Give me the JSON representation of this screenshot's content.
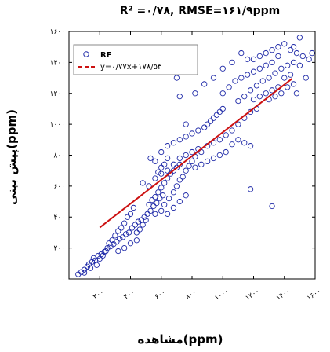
{
  "chart_data": {
    "type": "scatter",
    "title": "R² =۰/۷۸, RMSE=۱۶۱/۹ppm",
    "xlabel": "مشاهده(ppm)",
    "ylabel": "پیش بینی(ppm)",
    "xlim": [
      0,
      1600
    ],
    "ylim": [
      0,
      1600
    ],
    "x_ticks": [
      200,
      400,
      600,
      800,
      1000,
      1200,
      1400,
      1600
    ],
    "x_tick_labels": [
      "۲۰۰",
      "۴۰۰",
      "۶۰۰",
      "۸۰۰",
      "۱۰۰۰",
      "۱۲۰۰",
      "۱۴۰۰",
      "۱۶۰۰"
    ],
    "y_ticks": [
      0,
      200,
      400,
      600,
      800,
      1000,
      1200,
      1400,
      1600
    ],
    "y_tick_labels": [
      "۰",
      "۲۰۰",
      "۴۰۰",
      "۶۰۰",
      "۸۰۰",
      "۱۰۰۰",
      "۱۲۰۰",
      "۱۴۰۰",
      "۱۶۰۰"
    ],
    "legend_placement": "top-left",
    "grid": false,
    "series": [
      {
        "name": "RF",
        "kind": "scatter",
        "color": "#1f2aa8",
        "points": [
          [
            60,
            30
          ],
          [
            80,
            45
          ],
          [
            100,
            60
          ],
          [
            120,
            80
          ],
          [
            130,
            95
          ],
          [
            150,
            110
          ],
          [
            170,
            120
          ],
          [
            160,
            135
          ],
          [
            190,
            150
          ],
          [
            210,
            160
          ],
          [
            230,
            175
          ],
          [
            250,
            200
          ],
          [
            270,
            210
          ],
          [
            290,
            225
          ],
          [
            310,
            240
          ],
          [
            330,
            260
          ],
          [
            350,
            270
          ],
          [
            370,
            290
          ],
          [
            390,
            300
          ],
          [
            410,
            330
          ],
          [
            430,
            350
          ],
          [
            450,
            370
          ],
          [
            470,
            380
          ],
          [
            490,
            400
          ],
          [
            510,
            420
          ],
          [
            530,
            440
          ],
          [
            550,
            470
          ],
          [
            570,
            490
          ],
          [
            590,
            520
          ],
          [
            610,
            540
          ],
          [
            100,
            40
          ],
          [
            140,
            70
          ],
          [
            180,
            90
          ],
          [
            200,
            130
          ],
          [
            220,
            150
          ],
          [
            240,
            180
          ],
          [
            260,
            230
          ],
          [
            280,
            250
          ],
          [
            300,
            280
          ],
          [
            320,
            310
          ],
          [
            340,
            330
          ],
          [
            360,
            360
          ],
          [
            380,
            400
          ],
          [
            400,
            420
          ],
          [
            420,
            460
          ],
          [
            440,
            300
          ],
          [
            460,
            320
          ],
          [
            480,
            350
          ],
          [
            500,
            380
          ],
          [
            520,
            480
          ],
          [
            540,
            510
          ],
          [
            560,
            530
          ],
          [
            580,
            560
          ],
          [
            600,
            590
          ],
          [
            620,
            620
          ],
          [
            640,
            650
          ],
          [
            660,
            680
          ],
          [
            680,
            700
          ],
          [
            700,
            720
          ],
          [
            720,
            740
          ],
          [
            620,
            480
          ],
          [
            650,
            520
          ],
          [
            680,
            560
          ],
          [
            700,
            600
          ],
          [
            720,
            640
          ],
          [
            740,
            660
          ],
          [
            760,
            700
          ],
          [
            780,
            730
          ],
          [
            800,
            760
          ],
          [
            820,
            790
          ],
          [
            580,
            690
          ],
          [
            600,
            720
          ],
          [
            620,
            740
          ],
          [
            640,
            780
          ],
          [
            560,
            760
          ],
          [
            530,
            780
          ],
          [
            600,
            820
          ],
          [
            640,
            860
          ],
          [
            680,
            880
          ],
          [
            720,
            900
          ],
          [
            760,
            920
          ],
          [
            800,
            940
          ],
          [
            840,
            960
          ],
          [
            880,
            980
          ],
          [
            900,
            1000
          ],
          [
            920,
            1020
          ],
          [
            940,
            1040
          ],
          [
            960,
            1060
          ],
          [
            980,
            1080
          ],
          [
            1000,
            1100
          ],
          [
            860,
            820
          ],
          [
            900,
            860
          ],
          [
            940,
            880
          ],
          [
            980,
            900
          ],
          [
            1020,
            930
          ],
          [
            1060,
            960
          ],
          [
            1100,
            1000
          ],
          [
            1140,
            1040
          ],
          [
            1180,
            1080
          ],
          [
            1220,
            1100
          ],
          [
            1000,
            1200
          ],
          [
            1040,
            1240
          ],
          [
            1080,
            1280
          ],
          [
            1120,
            1300
          ],
          [
            1160,
            1320
          ],
          [
            1200,
            1340
          ],
          [
            1240,
            1360
          ],
          [
            1280,
            1380
          ],
          [
            1320,
            1400
          ],
          [
            1360,
            1440
          ],
          [
            1100,
            1150
          ],
          [
            1140,
            1180
          ],
          [
            1180,
            1220
          ],
          [
            1220,
            1250
          ],
          [
            1260,
            1280
          ],
          [
            1300,
            1300
          ],
          [
            1340,
            1330
          ],
          [
            1380,
            1360
          ],
          [
            1420,
            1380
          ],
          [
            1460,
            1400
          ],
          [
            1200,
            1420
          ],
          [
            1240,
            1440
          ],
          [
            1280,
            1460
          ],
          [
            1320,
            1480
          ],
          [
            1360,
            1500
          ],
          [
            1400,
            1520
          ],
          [
            1440,
            1480
          ],
          [
            1480,
            1460
          ],
          [
            1400,
            1300
          ],
          [
            1440,
            1320
          ],
          [
            1300,
            1160
          ],
          [
            1340,
            1180
          ],
          [
            1380,
            1200
          ],
          [
            1420,
            1240
          ],
          [
            1460,
            1260
          ],
          [
            1360,
            1240
          ],
          [
            1320,
            1220
          ],
          [
            1280,
            1200
          ],
          [
            1240,
            1180
          ],
          [
            1200,
            1160
          ],
          [
            1100,
            900
          ],
          [
            1140,
            880
          ],
          [
            1180,
            860
          ],
          [
            1060,
            870
          ],
          [
            1020,
            820
          ],
          [
            980,
            800
          ],
          [
            940,
            780
          ],
          [
            900,
            760
          ],
          [
            860,
            740
          ],
          [
            820,
            720
          ],
          [
            760,
            1000
          ],
          [
            720,
            1180
          ],
          [
            700,
            1300
          ],
          [
            820,
            1200
          ],
          [
            880,
            1260
          ],
          [
            940,
            1300
          ],
          [
            1000,
            1360
          ],
          [
            1060,
            1400
          ],
          [
            1120,
            1460
          ],
          [
            1160,
            1420
          ],
          [
            480,
            620
          ],
          [
            520,
            600
          ],
          [
            560,
            650
          ],
          [
            600,
            680
          ],
          [
            640,
            700
          ],
          [
            680,
            740
          ],
          [
            720,
            780
          ],
          [
            760,
            800
          ],
          [
            800,
            820
          ],
          [
            840,
            840
          ],
          [
            320,
            180
          ],
          [
            360,
            200
          ],
          [
            400,
            230
          ],
          [
            440,
            250
          ],
          [
            560,
            420
          ],
          [
            600,
            440
          ],
          [
            640,
            420
          ],
          [
            680,
            460
          ],
          [
            720,
            500
          ],
          [
            760,
            540
          ],
          [
            1180,
            580
          ],
          [
            1320,
            470
          ],
          [
            1480,
            1200
          ],
          [
            1540,
            1300
          ],
          [
            1560,
            1420
          ],
          [
            1500,
            1380
          ],
          [
            1520,
            1440
          ],
          [
            1460,
            1500
          ],
          [
            1580,
            1460
          ],
          [
            1500,
            1560
          ]
        ]
      },
      {
        "name": "y=۰/۷۷x+۱۷۸/۵۳",
        "kind": "line",
        "color": "#cc1111",
        "slope": 0.77,
        "intercept": 178.53,
        "x_range": [
          200,
          1450
        ]
      }
    ]
  }
}
